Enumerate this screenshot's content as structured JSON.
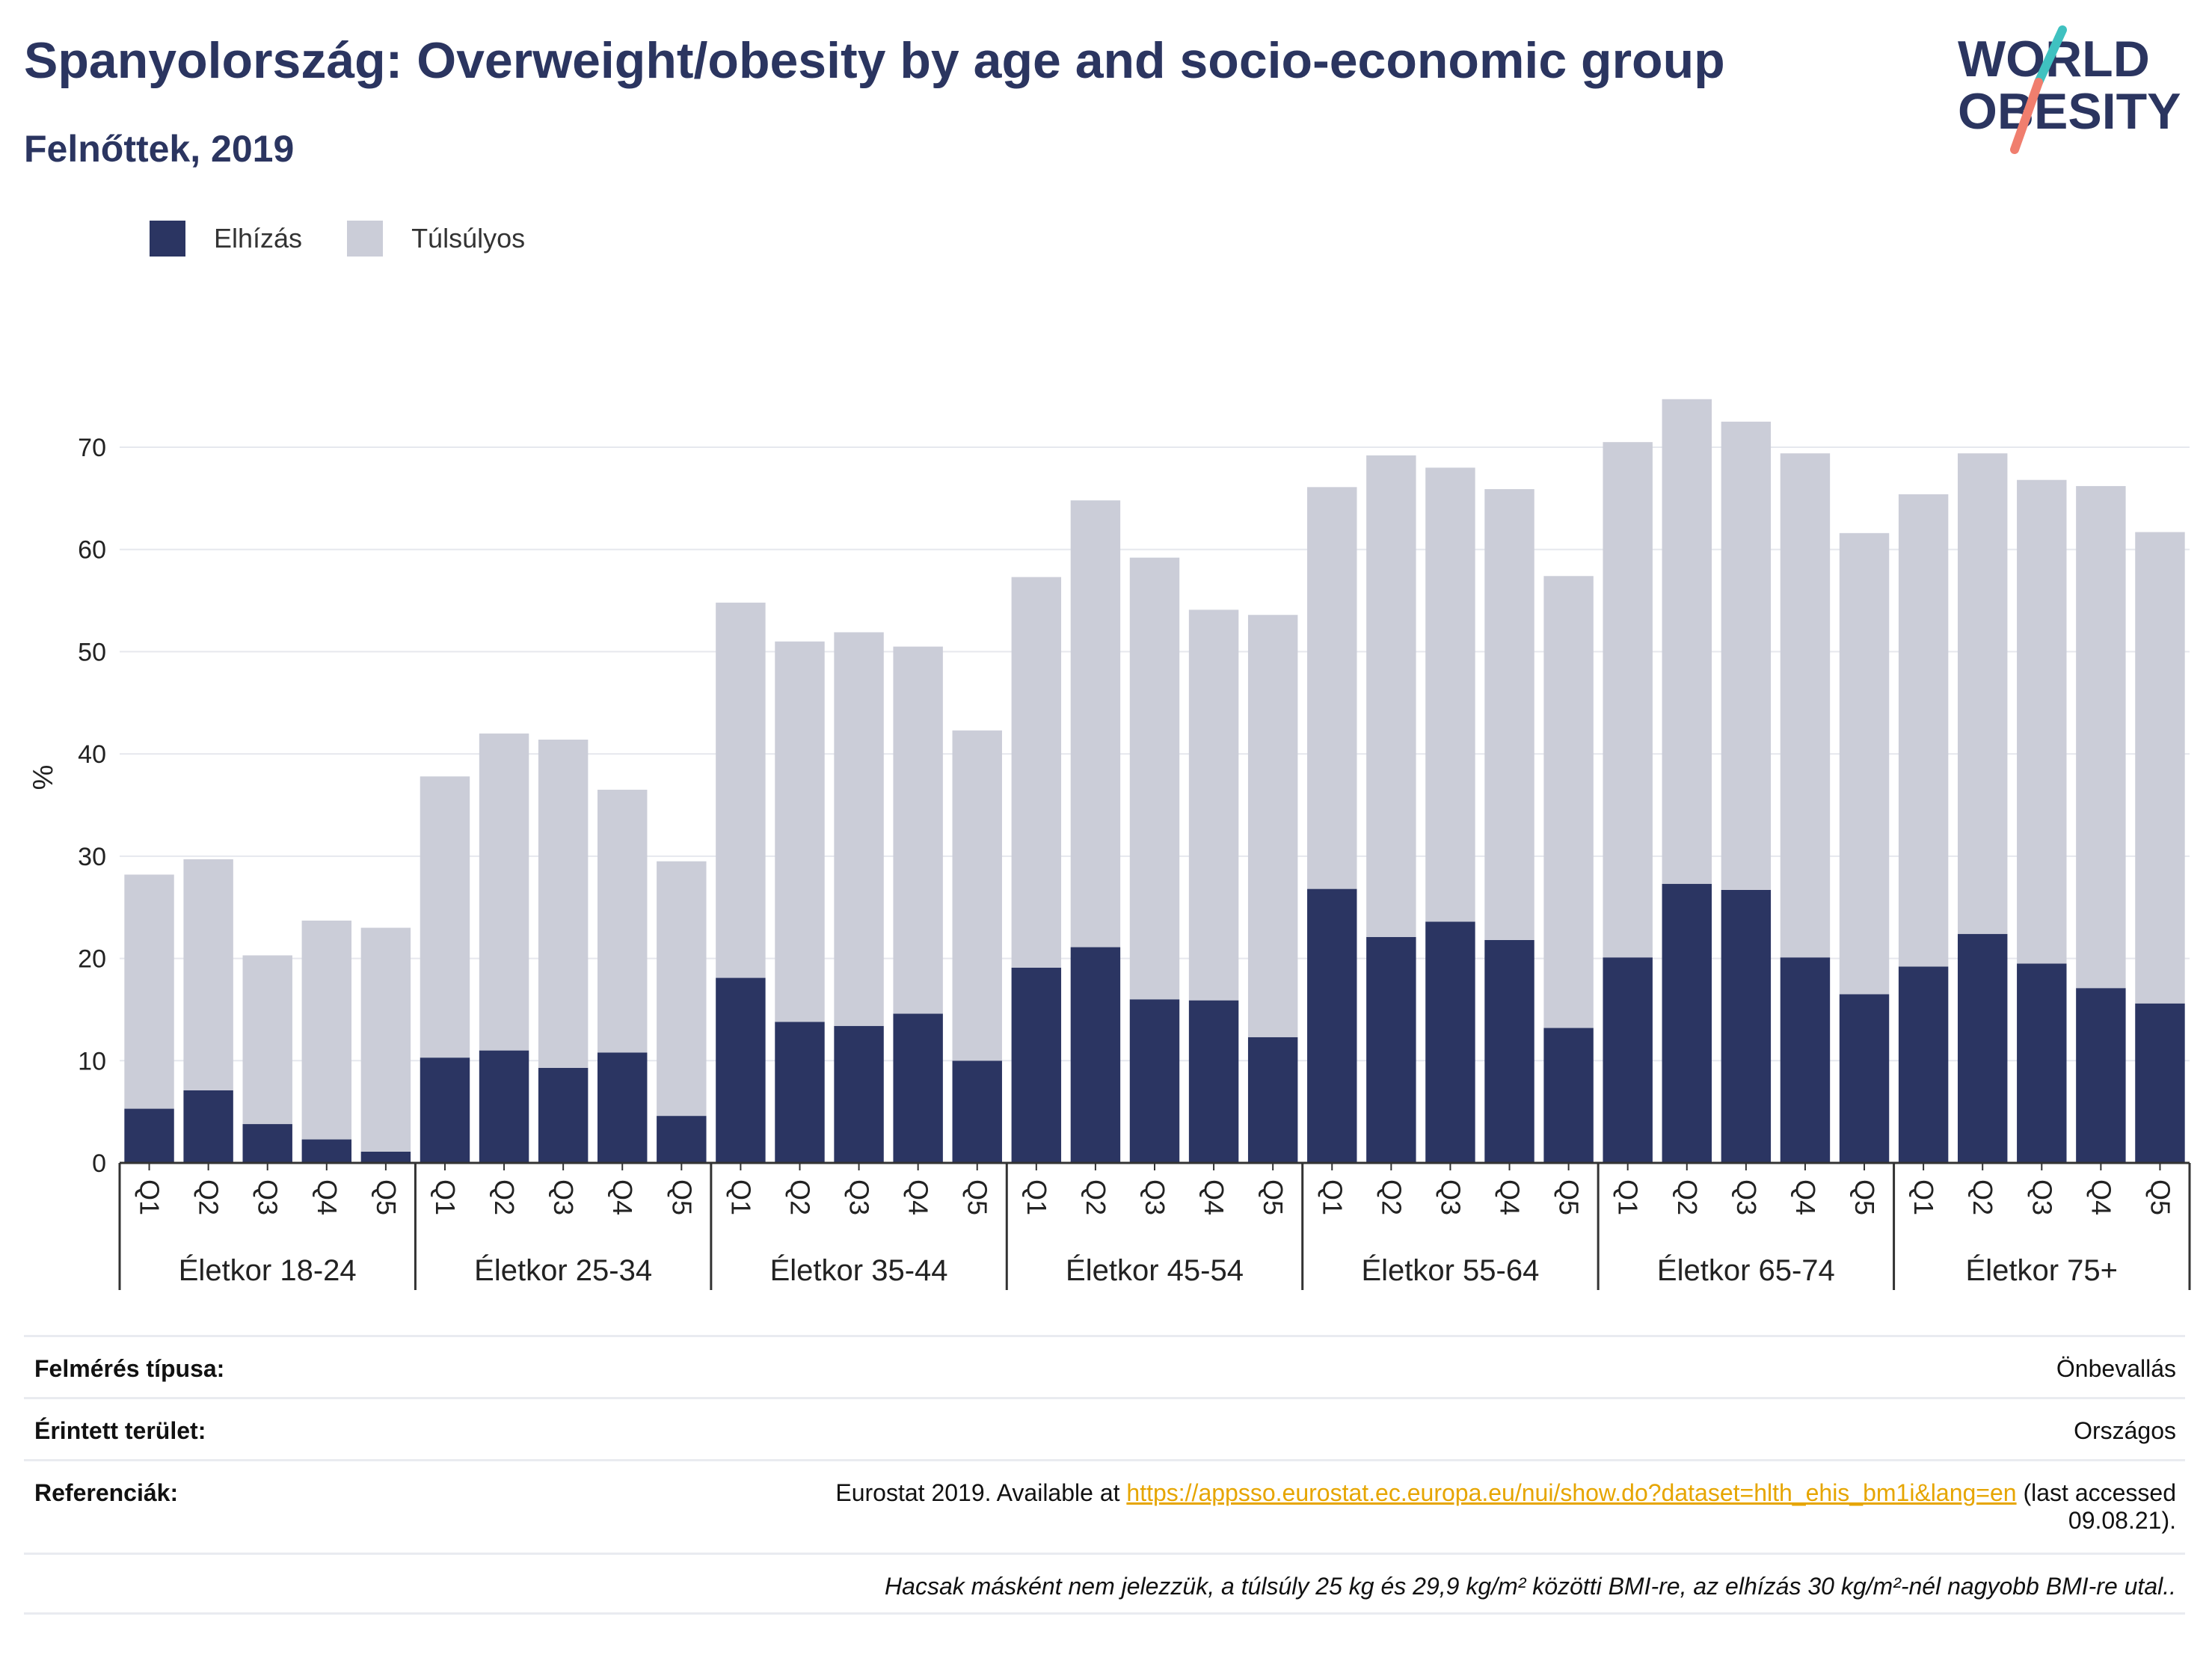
{
  "title": "Spanyolország: Overweight/obesity by age and socio-economic group",
  "subtitle": "Felnőttek, 2019",
  "logo": {
    "line1": "WORLD",
    "line2": "OBESITY"
  },
  "colors": {
    "obese": "#2b3562",
    "overweight": "#cbcdd8",
    "title": "#2b3560",
    "link": "#e6a500",
    "logo_teal": "#3fc1c0",
    "logo_coral": "#f07e6e"
  },
  "chart_data": {
    "type": "bar",
    "stacked": true,
    "ylabel": "%",
    "ylim": [
      0,
      75
    ],
    "yticks": [
      0,
      10,
      20,
      30,
      40,
      50,
      60,
      70
    ],
    "grid": true,
    "legend_position": "top-left",
    "groups": [
      "Életkor 18-24",
      "Életkor 25-34",
      "Életkor 35-44",
      "Életkor 45-54",
      "Életkor 55-64",
      "Életkor 65-74",
      "Életkor 75+"
    ],
    "quintiles": [
      "Q1",
      "Q2",
      "Q3",
      "Q4",
      "Q5"
    ],
    "series": [
      {
        "name": "Elhízás",
        "values": [
          5.3,
          7.1,
          3.8,
          2.3,
          1.1,
          10.3,
          11.0,
          9.3,
          10.8,
          4.6,
          18.1,
          13.8,
          13.4,
          14.6,
          10.0,
          19.1,
          21.1,
          16.0,
          15.9,
          12.3,
          26.8,
          22.1,
          23.6,
          21.8,
          13.2,
          20.1,
          27.3,
          26.7,
          20.1,
          16.5,
          19.2,
          22.4,
          19.5,
          17.1,
          15.6
        ]
      },
      {
        "name": "Túlsúlyos",
        "values": [
          22.9,
          22.6,
          16.5,
          21.4,
          21.9,
          27.5,
          31.0,
          32.1,
          25.7,
          24.9,
          36.7,
          37.2,
          38.5,
          35.9,
          32.3,
          38.2,
          43.7,
          43.2,
          38.2,
          41.3,
          39.3,
          47.1,
          44.4,
          44.1,
          44.2,
          50.4,
          47.4,
          45.8,
          49.3,
          45.1,
          46.2,
          47.0,
          47.3,
          49.1,
          46.1
        ]
      }
    ]
  },
  "info": {
    "survey_label": "Felmérés típusa:",
    "survey_value": "Önbevallás",
    "area_label": "Érintett terület:",
    "area_value": "Országos",
    "ref_label": "Referenciák:",
    "ref_prefix": "Eurostat 2019. Available at ",
    "ref_link": "https://appsso.eurostat.ec.europa.eu/nui/show.do?dataset=hlth_ehis_bm1i&lang=en",
    "ref_suffix": " (last accessed",
    "ref_date": "09.08.21).",
    "note": "Hacsak másként nem jelezzük, a túlsúly 25 kg és 29,9 kg/m² közötti BMI-re, az elhízás 30 kg/m²-nél nagyobb BMI-re utal.."
  }
}
